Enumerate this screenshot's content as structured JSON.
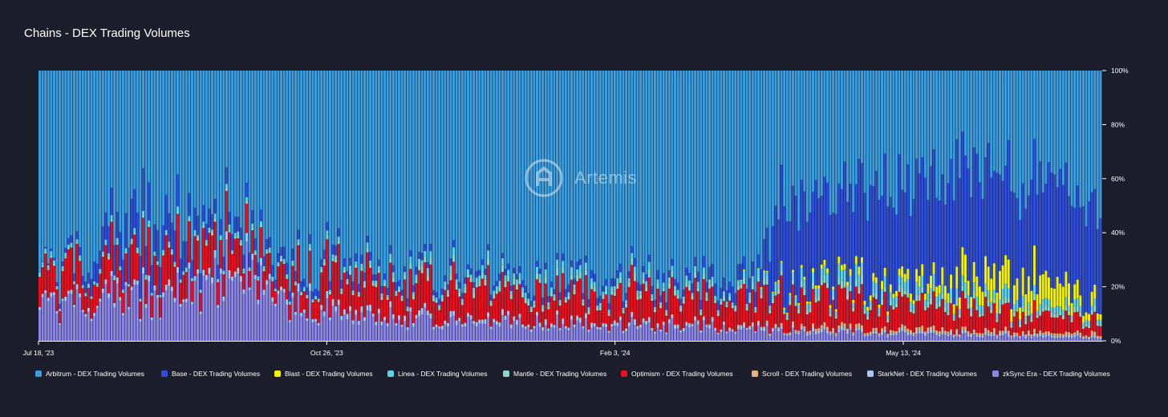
{
  "chart_data": {
    "type": "bar",
    "stacked": true,
    "normalized": true,
    "title": "Chains - DEX Trading Volumes",
    "x_ticks": [
      "Jul 18, '23",
      "Oct 26, '23",
      "Feb 3, '24",
      "May 13, '24"
    ],
    "y_ticks": [
      "0%",
      "20%",
      "40%",
      "60%",
      "80%",
      "100%"
    ],
    "ylim": [
      0,
      100
    ],
    "x_range": [
      "2023-07-18",
      "2024-07-21"
    ],
    "n_bars": 370,
    "series": [
      {
        "name": "zkSync Era - DEX Trading Volumes",
        "color": "#8b86e6"
      },
      {
        "name": "StarkNet - DEX Trading Volumes",
        "color": "#a9c4f5"
      },
      {
        "name": "Scroll - DEX Trading Volumes",
        "color": "#e8b27a"
      },
      {
        "name": "Optimism - DEX Trading Volumes",
        "color": "#e8101e"
      },
      {
        "name": "Mantle - DEX Trading Volumes",
        "color": "#8fd6c6"
      },
      {
        "name": "Linea - DEX Trading Volumes",
        "color": "#5fd3ec"
      },
      {
        "name": "Blast - DEX Trading Volumes",
        "color": "#f2f200"
      },
      {
        "name": "Base - DEX Trading Volumes",
        "color": "#2e4ed9"
      },
      {
        "name": "Arbitrum - DEX Trading Volumes",
        "color": "#3a9fe0"
      }
    ],
    "approx_share_percent": {
      "note": "Key points (date -> percent): piecewise trend of each series",
      "zkSync Era - DEX Trading Volumes": [
        [
          "2023-07-18",
          11
        ],
        [
          "2023-09-05",
          18
        ],
        [
          "2023-10-01",
          24
        ],
        [
          "2023-10-25",
          9
        ],
        [
          "2023-12-20",
          7
        ],
        [
          "2024-01-15",
          6
        ],
        [
          "2024-03-15",
          5
        ],
        [
          "2024-04-01",
          3
        ],
        [
          "2024-07-21",
          1
        ]
      ],
      "StarkNet - DEX Trading Volumes": [
        [
          "2023-07-18",
          1
        ],
        [
          "2023-10-01",
          2
        ],
        [
          "2023-12-20",
          1.5
        ],
        [
          "2024-04-01",
          1
        ],
        [
          "2024-07-21",
          0.8
        ]
      ],
      "Scroll - DEX Trading Volumes": [
        [
          "2023-07-18",
          0
        ],
        [
          "2023-10-25",
          0
        ],
        [
          "2024-03-25",
          0.3
        ],
        [
          "2024-04-15",
          1
        ],
        [
          "2024-07-21",
          1
        ]
      ],
      "Optimism - DEX Trading Volumes": [
        [
          "2023-07-18",
          9
        ],
        [
          "2023-09-05",
          12
        ],
        [
          "2023-10-01",
          8
        ],
        [
          "2023-10-25",
          12
        ],
        [
          "2024-01-15",
          11
        ],
        [
          "2024-03-15",
          10
        ],
        [
          "2024-04-15",
          10
        ],
        [
          "2024-06-01",
          8
        ],
        [
          "2024-07-21",
          5
        ]
      ],
      "Mantle - DEX Trading Volumes": [
        [
          "2023-07-18",
          0.5
        ],
        [
          "2023-10-25",
          1
        ],
        [
          "2023-12-20",
          2
        ],
        [
          "2024-03-15",
          1.5
        ],
        [
          "2024-05-01",
          2
        ],
        [
          "2024-07-21",
          1.5
        ]
      ],
      "Linea - DEX Trading Volumes": [
        [
          "2023-07-18",
          1
        ],
        [
          "2023-10-25",
          1
        ],
        [
          "2023-12-20",
          2
        ],
        [
          "2024-03-15",
          1.5
        ],
        [
          "2024-04-15",
          3
        ],
        [
          "2024-06-01",
          3
        ],
        [
          "2024-07-21",
          2
        ]
      ],
      "Blast - DEX Trading Volumes": [
        [
          "2023-07-18",
          0
        ],
        [
          "2024-03-01",
          0
        ],
        [
          "2024-04-01",
          0.5
        ],
        [
          "2024-05-20",
          3
        ],
        [
          "2024-06-10",
          8
        ],
        [
          "2024-07-01",
          10
        ],
        [
          "2024-07-21",
          3
        ]
      ],
      "Base - DEX Trading Volumes": [
        [
          "2023-07-18",
          0
        ],
        [
          "2023-08-01",
          3
        ],
        [
          "2023-08-20",
          14
        ],
        [
          "2023-09-20",
          5
        ],
        [
          "2023-10-25",
          3
        ],
        [
          "2023-12-20",
          2
        ],
        [
          "2024-03-01",
          3
        ],
        [
          "2024-03-25",
          6
        ],
        [
          "2024-04-01",
          30
        ],
        [
          "2024-05-01",
          33
        ],
        [
          "2024-06-01",
          38
        ],
        [
          "2024-07-21",
          33
        ]
      ],
      "Arbitrum - DEX Trading Volumes": "remainder to 100%"
    },
    "colors": {
      "background": "#1c1f2b",
      "text": "#ffffff",
      "axis": "#ffffff"
    }
  },
  "watermark": {
    "text": "Artemis"
  },
  "legend": {
    "items": [
      {
        "label": "Arbitrum - DEX Trading Volumes",
        "color": "#3a9fe0"
      },
      {
        "label": "Base - DEX Trading Volumes",
        "color": "#2e4ed9"
      },
      {
        "label": "Blast - DEX Trading Volumes",
        "color": "#f2f200"
      },
      {
        "label": "Linea - DEX Trading Volumes",
        "color": "#5fd3ec"
      },
      {
        "label": "Mantle - DEX Trading Volumes",
        "color": "#8fd6c6"
      },
      {
        "label": "Optimism - DEX Trading Volumes",
        "color": "#e8101e"
      },
      {
        "label": "Scroll - DEX Trading Volumes",
        "color": "#e8b27a"
      },
      {
        "label": "StarkNet - DEX Trading Volumes",
        "color": "#a9c4f5"
      },
      {
        "label": "zkSync Era - DEX Trading Volumes",
        "color": "#8b86e6"
      }
    ]
  }
}
